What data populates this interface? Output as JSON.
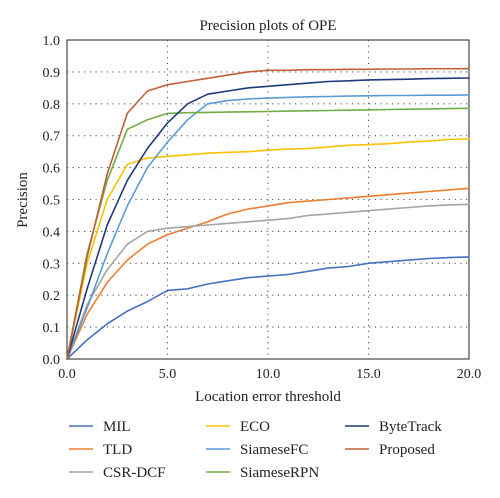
{
  "chart_data": {
    "type": "line",
    "title": "Precision plots of OPE",
    "xlabel": "Location error threshold",
    "ylabel": "Precision",
    "xlim": [
      0,
      20
    ],
    "ylim": [
      0,
      1.0
    ],
    "x_ticks": [
      "0.0",
      "5.0",
      "10.0",
      "15.0",
      "20.0"
    ],
    "y_ticks": [
      "0.0",
      "0.1",
      "0.2",
      "0.3",
      "0.4",
      "0.5",
      "0.6",
      "0.7",
      "0.8",
      "0.9",
      "1.0"
    ],
    "grid": "dotted",
    "legend_position": "bottom",
    "series": [
      {
        "name": "MIL",
        "color": "#4472c4",
        "x": [
          0,
          1,
          2,
          3,
          4,
          5,
          6,
          7,
          8,
          9,
          10,
          11,
          12,
          13,
          14,
          15,
          16,
          17,
          18,
          19,
          20
        ],
        "y": [
          0,
          0.06,
          0.11,
          0.15,
          0.18,
          0.215,
          0.22,
          0.235,
          0.245,
          0.255,
          0.26,
          0.265,
          0.275,
          0.285,
          0.29,
          0.3,
          0.305,
          0.31,
          0.315,
          0.318,
          0.32
        ]
      },
      {
        "name": "TLD",
        "color": "#ed7d31",
        "x": [
          0,
          1,
          2,
          3,
          4,
          5,
          6,
          7,
          8,
          9,
          10,
          11,
          12,
          13,
          14,
          15,
          16,
          17,
          18,
          19,
          20
        ],
        "y": [
          0,
          0.14,
          0.24,
          0.31,
          0.36,
          0.39,
          0.41,
          0.43,
          0.455,
          0.47,
          0.48,
          0.49,
          0.495,
          0.5,
          0.505,
          0.51,
          0.515,
          0.52,
          0.525,
          0.53,
          0.535
        ]
      },
      {
        "name": "CSR-DCF",
        "color": "#a5a5a5",
        "x": [
          0,
          1,
          2,
          3,
          4,
          5,
          6,
          7,
          8,
          9,
          10,
          11,
          12,
          13,
          14,
          15,
          16,
          17,
          18,
          19,
          20
        ],
        "y": [
          0,
          0.17,
          0.28,
          0.36,
          0.4,
          0.41,
          0.415,
          0.42,
          0.425,
          0.43,
          0.435,
          0.44,
          0.45,
          0.455,
          0.46,
          0.465,
          0.47,
          0.475,
          0.48,
          0.483,
          0.485
        ]
      },
      {
        "name": "ECO",
        "color": "#ffc000",
        "x": [
          0,
          1,
          2,
          3,
          4,
          5,
          6,
          7,
          8,
          9,
          10,
          11,
          12,
          13,
          14,
          15,
          16,
          17,
          18,
          19,
          20
        ],
        "y": [
          0,
          0.3,
          0.5,
          0.61,
          0.63,
          0.635,
          0.64,
          0.645,
          0.648,
          0.65,
          0.655,
          0.658,
          0.66,
          0.665,
          0.67,
          0.672,
          0.675,
          0.68,
          0.683,
          0.688,
          0.69
        ]
      },
      {
        "name": "SiameseFC",
        "color": "#5b9bd5",
        "x": [
          0,
          1,
          2,
          3,
          4,
          5,
          6,
          7,
          8,
          9,
          10,
          11,
          12,
          13,
          14,
          15,
          16,
          17,
          18,
          19,
          20
        ],
        "y": [
          0,
          0.16,
          0.33,
          0.48,
          0.6,
          0.68,
          0.75,
          0.8,
          0.81,
          0.815,
          0.818,
          0.82,
          0.822,
          0.823,
          0.824,
          0.825,
          0.826,
          0.826,
          0.827,
          0.827,
          0.828
        ]
      },
      {
        "name": "SiameseRPN",
        "color": "#70ad47",
        "x": [
          0,
          1,
          2,
          3,
          4,
          5,
          6,
          7,
          8,
          9,
          10,
          11,
          12,
          13,
          14,
          15,
          16,
          17,
          18,
          19,
          20
        ],
        "y": [
          0,
          0.33,
          0.56,
          0.72,
          0.75,
          0.77,
          0.772,
          0.773,
          0.774,
          0.775,
          0.776,
          0.777,
          0.778,
          0.779,
          0.78,
          0.781,
          0.782,
          0.783,
          0.784,
          0.785,
          0.786
        ]
      },
      {
        "name": "ByteTrack",
        "color": "#1f3a7a",
        "x": [
          0,
          1,
          2,
          3,
          4,
          5,
          6,
          7,
          8,
          9,
          10,
          11,
          12,
          13,
          14,
          15,
          16,
          17,
          18,
          19,
          20
        ],
        "y": [
          0,
          0.22,
          0.42,
          0.56,
          0.66,
          0.74,
          0.8,
          0.83,
          0.84,
          0.85,
          0.855,
          0.86,
          0.865,
          0.87,
          0.872,
          0.875,
          0.876,
          0.877,
          0.879,
          0.88,
          0.881
        ]
      },
      {
        "name": "Proposed",
        "color": "#c0603a",
        "x": [
          0,
          1,
          2,
          3,
          4,
          5,
          6,
          7,
          8,
          9,
          10,
          11,
          12,
          13,
          14,
          15,
          16,
          17,
          18,
          19,
          20
        ],
        "y": [
          0,
          0.32,
          0.58,
          0.77,
          0.84,
          0.86,
          0.87,
          0.88,
          0.89,
          0.9,
          0.905,
          0.905,
          0.907,
          0.907,
          0.908,
          0.908,
          0.909,
          0.909,
          0.91,
          0.91,
          0.91
        ]
      }
    ]
  }
}
